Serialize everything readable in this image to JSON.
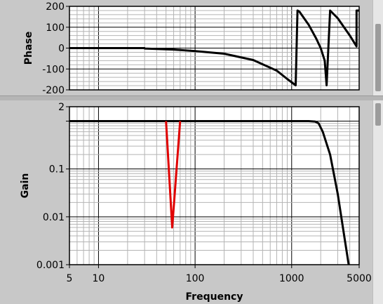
{
  "colors": {
    "plot_bg": "#ffffff",
    "grid_major": "#000000",
    "grid_minor": "#b4b4b4",
    "series_black": "#000000",
    "series_red": "#e00000",
    "frame": "#000000"
  },
  "chart_data": [
    {
      "type": "line",
      "ylabel": "Phase",
      "xscale": "log",
      "xlim": [
        5,
        5000
      ],
      "ylim": [
        -200,
        200
      ],
      "yticks": [
        -200,
        -100,
        0,
        100,
        200
      ],
      "yticklabels": [
        "-200",
        "-100",
        "0",
        "100",
        "200"
      ],
      "grid": true,
      "series": [
        {
          "color": "black",
          "x": [
            5,
            30,
            30.1,
            60,
            100,
            200,
            400,
            700,
            900,
            1100,
            1150,
            1200,
            1500,
            1800,
            2000,
            2200,
            2300,
            2500,
            3000,
            4000,
            4700,
            4700.1,
            5000
          ],
          "y": [
            0,
            0,
            -2,
            -7,
            -14,
            -27,
            -57,
            -108,
            -148,
            -178,
            180,
            175,
            112,
            45,
            0,
            -60,
            -178,
            180,
            143,
            60,
            8,
            180,
            180
          ]
        }
      ]
    },
    {
      "type": "line",
      "xlabel": "Frequency",
      "ylabel": "Gain",
      "xscale": "log",
      "yscale": "log",
      "xlim": [
        5,
        5000
      ],
      "ylim": [
        0.001,
        2
      ],
      "xticks": [
        5,
        10,
        100,
        1000,
        5000
      ],
      "xticklabels": [
        "5",
        "10",
        "100",
        "1000",
        "5000"
      ],
      "yticks": [
        0.001,
        0.01,
        0.1,
        2
      ],
      "yticklabels": [
        "0.001",
        "0.01",
        "0.1",
        "2"
      ],
      "grid": true,
      "series": [
        {
          "color": "black",
          "x": [
            5,
            1500,
            1750,
            1900,
            2100,
            2500,
            3000,
            3500,
            3900
          ],
          "y": [
            1,
            1,
            0.98,
            0.9,
            0.6,
            0.2,
            0.03,
            0.004,
            0.001
          ]
        },
        {
          "color": "red",
          "x": [
            50,
            58,
            70
          ],
          "y": [
            1,
            0.006,
            1
          ]
        }
      ]
    }
  ]
}
